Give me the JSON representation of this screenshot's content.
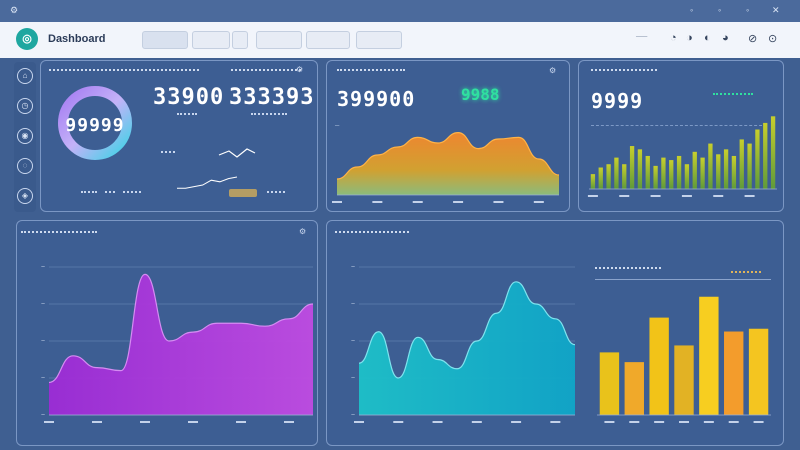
{
  "app": {
    "title": "Dashboard"
  },
  "colors": {
    "background": "#3f5f91",
    "panel": "#3d5e93",
    "accent_teal": "#1fa7a0",
    "orange": "#f39a2d",
    "purple": "#a932d8",
    "cyan": "#14b8c8",
    "yellow": "#f2c318",
    "green_badge": "#2fe0a0"
  },
  "icons": {
    "logo": "dashboard-logo-icon",
    "header": [
      "grid-icon",
      "gear-icon",
      "bell-icon",
      "user-icon",
      "logout-icon"
    ],
    "sidebar": [
      "home-icon",
      "chart-icon",
      "users-icon",
      "settings-icon",
      "help-icon"
    ]
  },
  "kpi_panel": {
    "donut_value": "99999",
    "value_1": "33900",
    "value_2": "333393"
  },
  "area_panel": {
    "value_1": "399900",
    "value_2": "9988"
  },
  "bar_panel": {
    "value": "9999"
  },
  "chart_data": [
    {
      "type": "line",
      "title": "",
      "x": [
        1,
        2,
        3,
        4,
        5,
        6,
        7,
        8
      ],
      "series": [
        {
          "values": [
            3,
            3,
            4,
            5,
            8,
            7,
            9,
            10
          ]
        }
      ]
    },
    {
      "type": "area",
      "title": "",
      "x": [
        1,
        2,
        3,
        4,
        5,
        6,
        7,
        8,
        9,
        10,
        11,
        12
      ],
      "series": [
        {
          "values": [
            20,
            35,
            50,
            60,
            72,
            65,
            78,
            58,
            70,
            72,
            45,
            25
          ]
        }
      ]
    },
    {
      "type": "bar",
      "title": "",
      "categories": [
        "1",
        "2",
        "3",
        "4",
        "5",
        "6",
        "7",
        "8",
        "9",
        "10",
        "11",
        "12",
        "13",
        "14",
        "15",
        "16",
        "17",
        "18",
        "19",
        "20",
        "21",
        "22",
        "23",
        "24"
      ],
      "values": [
        18,
        26,
        30,
        38,
        30,
        52,
        48,
        40,
        28,
        38,
        35,
        40,
        30,
        45,
        38,
        55,
        42,
        48,
        40,
        60,
        55,
        72,
        80,
        88
      ]
    },
    {
      "type": "area",
      "title": "",
      "x": [
        1,
        2,
        3,
        4,
        5,
        6,
        7,
        8,
        9,
        10,
        11,
        12
      ],
      "series": [
        {
          "values": [
            22,
            40,
            32,
            30,
            95,
            50,
            56,
            62,
            62,
            60,
            65,
            75
          ]
        }
      ]
    },
    {
      "type": "area",
      "title": "",
      "x": [
        1,
        2,
        3,
        4,
        5,
        6,
        7,
        8,
        9,
        10,
        11,
        12
      ],
      "series": [
        {
          "values": [
            28,
            45,
            20,
            42,
            30,
            25,
            40,
            55,
            72,
            60,
            52,
            38
          ]
        }
      ]
    },
    {
      "type": "bar",
      "title": "",
      "categories": [
        "1",
        "2",
        "3",
        "4",
        "5",
        "6",
        "7"
      ],
      "values": [
        45,
        38,
        70,
        50,
        85,
        60,
        62
      ]
    }
  ]
}
